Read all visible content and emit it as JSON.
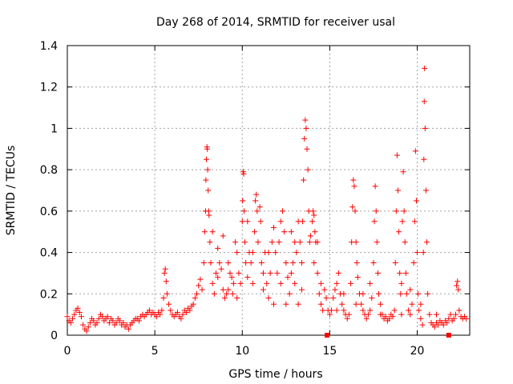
{
  "chart_data": {
    "type": "scatter",
    "title": "Day 268 of 2014, SRMTID for receiver usal",
    "xlabel": "GPS time / hours",
    "ylabel": "SRMTID / TECUs",
    "xlim": [
      0,
      23
    ],
    "ylim": [
      0,
      1.4
    ],
    "xticks": [
      0,
      5,
      10,
      15,
      20
    ],
    "xtick_labels": [
      "0",
      "5",
      "10",
      "15",
      "20"
    ],
    "yticks": [
      0,
      0.2,
      0.4,
      0.6,
      0.8,
      1,
      1.2,
      1.4
    ],
    "ytick_labels": [
      "0",
      "0.2",
      "0.4",
      "0.6",
      "0.8",
      "1",
      "1.2",
      "1.4"
    ],
    "grid": true,
    "marker": "+",
    "series": [
      {
        "name": "SRMTID",
        "color": "#ff0000",
        "points": [
          [
            0.0,
            0.09
          ],
          [
            0.1,
            0.07
          ],
          [
            0.2,
            0.06
          ],
          [
            0.3,
            0.08
          ],
          [
            0.4,
            0.1
          ],
          [
            0.5,
            0.12
          ],
          [
            0.6,
            0.13
          ],
          [
            0.7,
            0.11
          ],
          [
            0.8,
            0.09
          ],
          [
            0.9,
            0.05
          ],
          [
            1.0,
            0.03
          ],
          [
            1.1,
            0.02
          ],
          [
            1.2,
            0.04
          ],
          [
            1.3,
            0.06
          ],
          [
            1.4,
            0.08
          ],
          [
            1.5,
            0.07
          ],
          [
            1.6,
            0.05
          ],
          [
            1.7,
            0.06
          ],
          [
            1.8,
            0.08
          ],
          [
            1.9,
            0.1
          ],
          [
            2.0,
            0.09
          ],
          [
            2.1,
            0.07
          ],
          [
            2.2,
            0.08
          ],
          [
            2.3,
            0.09
          ],
          [
            2.4,
            0.06
          ],
          [
            2.5,
            0.08
          ],
          [
            2.6,
            0.07
          ],
          [
            2.7,
            0.05
          ],
          [
            2.8,
            0.06
          ],
          [
            2.9,
            0.08
          ],
          [
            3.0,
            0.07
          ],
          [
            3.1,
            0.05
          ],
          [
            3.2,
            0.06
          ],
          [
            3.3,
            0.04
          ],
          [
            3.4,
            0.05
          ],
          [
            3.5,
            0.03
          ],
          [
            3.6,
            0.05
          ],
          [
            3.7,
            0.06
          ],
          [
            3.8,
            0.07
          ],
          [
            3.9,
            0.08
          ],
          [
            4.0,
            0.08
          ],
          [
            4.1,
            0.07
          ],
          [
            4.2,
            0.09
          ],
          [
            4.3,
            0.1
          ],
          [
            4.4,
            0.09
          ],
          [
            4.5,
            0.1
          ],
          [
            4.6,
            0.11
          ],
          [
            4.7,
            0.12
          ],
          [
            4.8,
            0.1
          ],
          [
            4.9,
            0.11
          ],
          [
            5.0,
            0.1
          ],
          [
            5.1,
            0.09
          ],
          [
            5.2,
            0.11
          ],
          [
            5.3,
            0.1
          ],
          [
            5.4,
            0.12
          ],
          [
            5.5,
            0.18
          ],
          [
            5.55,
            0.3
          ],
          [
            5.6,
            0.32
          ],
          [
            5.65,
            0.26
          ],
          [
            5.7,
            0.2
          ],
          [
            5.8,
            0.15
          ],
          [
            5.9,
            0.12
          ],
          [
            6.0,
            0.1
          ],
          [
            6.1,
            0.09
          ],
          [
            6.2,
            0.1
          ],
          [
            6.3,
            0.11
          ],
          [
            6.4,
            0.09
          ],
          [
            6.5,
            0.08
          ],
          [
            6.6,
            0.1
          ],
          [
            6.7,
            0.12
          ],
          [
            6.8,
            0.11
          ],
          [
            6.9,
            0.13
          ],
          [
            7.0,
            0.12
          ],
          [
            7.1,
            0.14
          ],
          [
            7.2,
            0.15
          ],
          [
            7.3,
            0.18
          ],
          [
            7.4,
            0.2
          ],
          [
            7.5,
            0.24
          ],
          [
            7.6,
            0.27
          ],
          [
            7.7,
            0.22
          ],
          [
            7.8,
            0.35
          ],
          [
            7.85,
            0.5
          ],
          [
            7.9,
            0.6
          ],
          [
            7.92,
            0.75
          ],
          [
            7.95,
            0.85
          ],
          [
            7.98,
            0.91
          ],
          [
            8.0,
            0.9
          ],
          [
            8.02,
            0.8
          ],
          [
            8.05,
            0.7
          ],
          [
            8.08,
            0.6
          ],
          [
            8.1,
            0.58
          ],
          [
            8.15,
            0.45
          ],
          [
            8.2,
            0.35
          ],
          [
            8.3,
            0.25
          ],
          [
            8.4,
            0.2
          ],
          [
            8.5,
            0.3
          ],
          [
            8.6,
            0.28
          ],
          [
            8.7,
            0.35
          ],
          [
            8.8,
            0.32
          ],
          [
            8.9,
            0.22
          ],
          [
            9.0,
            0.18
          ],
          [
            9.1,
            0.2
          ],
          [
            9.2,
            0.22
          ],
          [
            9.3,
            0.3
          ],
          [
            9.4,
            0.28
          ],
          [
            9.5,
            0.25
          ],
          [
            9.6,
            0.45
          ],
          [
            9.7,
            0.4
          ],
          [
            9.8,
            0.3
          ],
          [
            9.9,
            0.25
          ],
          [
            10.0,
            0.55
          ],
          [
            10.02,
            0.65
          ],
          [
            10.05,
            0.79
          ],
          [
            10.08,
            0.78
          ],
          [
            10.1,
            0.6
          ],
          [
            10.15,
            0.45
          ],
          [
            10.2,
            0.35
          ],
          [
            10.3,
            0.28
          ],
          [
            10.4,
            0.4
          ],
          [
            10.5,
            0.35
          ],
          [
            10.6,
            0.25
          ],
          [
            10.7,
            0.5
          ],
          [
            10.75,
            0.65
          ],
          [
            10.8,
            0.68
          ],
          [
            10.85,
            0.6
          ],
          [
            10.9,
            0.45
          ],
          [
            11.0,
            0.62
          ],
          [
            11.05,
            0.55
          ],
          [
            11.1,
            0.35
          ],
          [
            11.2,
            0.3
          ],
          [
            11.3,
            0.4
          ],
          [
            11.4,
            0.25
          ],
          [
            11.5,
            0.18
          ],
          [
            11.6,
            0.3
          ],
          [
            11.7,
            0.45
          ],
          [
            11.8,
            0.52
          ],
          [
            11.9,
            0.4
          ],
          [
            12.0,
            0.3
          ],
          [
            12.1,
            0.45
          ],
          [
            12.2,
            0.55
          ],
          [
            12.3,
            0.6
          ],
          [
            12.4,
            0.5
          ],
          [
            12.5,
            0.35
          ],
          [
            12.6,
            0.28
          ],
          [
            12.7,
            0.2
          ],
          [
            12.8,
            0.3
          ],
          [
            12.9,
            0.35
          ],
          [
            13.0,
            0.25
          ],
          [
            13.1,
            0.4
          ],
          [
            13.2,
            0.55
          ],
          [
            13.3,
            0.45
          ],
          [
            13.4,
            0.35
          ],
          [
            13.45,
            0.55
          ],
          [
            13.5,
            0.75
          ],
          [
            13.55,
            0.95
          ],
          [
            13.6,
            1.04
          ],
          [
            13.65,
            1.0
          ],
          [
            13.7,
            0.9
          ],
          [
            13.75,
            0.8
          ],
          [
            13.8,
            0.6
          ],
          [
            13.85,
            0.45
          ],
          [
            13.9,
            0.48
          ],
          [
            14.0,
            0.55
          ],
          [
            14.05,
            0.6
          ],
          [
            14.1,
            0.58
          ],
          [
            14.15,
            0.5
          ],
          [
            14.2,
            0.45
          ],
          [
            14.3,
            0.3
          ],
          [
            14.4,
            0.2
          ],
          [
            14.5,
            0.15
          ],
          [
            14.6,
            0.12
          ],
          [
            14.7,
            0.22
          ],
          [
            14.8,
            0.18
          ],
          [
            14.9,
            0.12
          ],
          [
            15.0,
            0.1
          ],
          [
            15.1,
            0.12
          ],
          [
            15.2,
            0.18
          ],
          [
            15.3,
            0.22
          ],
          [
            15.4,
            0.25
          ],
          [
            15.5,
            0.3
          ],
          [
            15.6,
            0.2
          ],
          [
            15.7,
            0.15
          ],
          [
            15.8,
            0.12
          ],
          [
            15.9,
            0.1
          ],
          [
            16.0,
            0.08
          ],
          [
            16.1,
            0.1
          ],
          [
            16.2,
            0.25
          ],
          [
            16.25,
            0.45
          ],
          [
            16.3,
            0.62
          ],
          [
            16.35,
            0.75
          ],
          [
            16.4,
            0.72
          ],
          [
            16.45,
            0.6
          ],
          [
            16.5,
            0.45
          ],
          [
            16.55,
            0.35
          ],
          [
            16.6,
            0.28
          ],
          [
            16.7,
            0.2
          ],
          [
            16.8,
            0.15
          ],
          [
            16.9,
            0.12
          ],
          [
            17.0,
            0.1
          ],
          [
            17.1,
            0.08
          ],
          [
            17.2,
            0.1
          ],
          [
            17.3,
            0.12
          ],
          [
            17.4,
            0.18
          ],
          [
            17.5,
            0.35
          ],
          [
            17.55,
            0.55
          ],
          [
            17.6,
            0.72
          ],
          [
            17.65,
            0.6
          ],
          [
            17.7,
            0.45
          ],
          [
            17.75,
            0.3
          ],
          [
            17.8,
            0.2
          ],
          [
            17.9,
            0.15
          ],
          [
            18.0,
            0.1
          ],
          [
            18.1,
            0.08
          ],
          [
            18.2,
            0.09
          ],
          [
            18.3,
            0.07
          ],
          [
            18.4,
            0.08
          ],
          [
            18.5,
            0.1
          ],
          [
            18.6,
            0.09
          ],
          [
            18.7,
            0.12
          ],
          [
            18.75,
            0.35
          ],
          [
            18.8,
            0.6
          ],
          [
            18.85,
            0.87
          ],
          [
            18.9,
            0.7
          ],
          [
            18.95,
            0.5
          ],
          [
            19.0,
            0.3
          ],
          [
            19.05,
            0.2
          ],
          [
            19.1,
            0.25
          ],
          [
            19.15,
            0.55
          ],
          [
            19.2,
            0.79
          ],
          [
            19.25,
            0.6
          ],
          [
            19.3,
            0.45
          ],
          [
            19.35,
            0.3
          ],
          [
            19.4,
            0.2
          ],
          [
            19.5,
            0.12
          ],
          [
            19.6,
            0.1
          ],
          [
            19.7,
            0.15
          ],
          [
            19.8,
            0.35
          ],
          [
            19.85,
            0.55
          ],
          [
            19.9,
            0.89
          ],
          [
            19.95,
            0.65
          ],
          [
            20.0,
            0.4
          ],
          [
            20.05,
            0.2
          ],
          [
            20.1,
            0.12
          ],
          [
            20.2,
            0.08
          ],
          [
            20.3,
            0.05
          ],
          [
            20.35,
            0.4
          ],
          [
            20.38,
            0.85
          ],
          [
            20.4,
            1.13
          ],
          [
            20.42,
            1.29
          ],
          [
            20.45,
            1.0
          ],
          [
            20.5,
            0.7
          ],
          [
            20.55,
            0.45
          ],
          [
            20.6,
            0.2
          ],
          [
            20.7,
            0.1
          ],
          [
            20.8,
            0.06
          ],
          [
            20.9,
            0.05
          ],
          [
            21.0,
            0.04
          ],
          [
            21.1,
            0.06
          ],
          [
            21.2,
            0.05
          ],
          [
            21.3,
            0.07
          ],
          [
            21.4,
            0.06
          ],
          [
            21.5,
            0.05
          ],
          [
            21.6,
            0.07
          ],
          [
            21.7,
            0.06
          ],
          [
            21.8,
            0.08
          ],
          [
            21.9,
            0.1
          ],
          [
            22.0,
            0.07
          ],
          [
            22.1,
            0.08
          ],
          [
            22.2,
            0.1
          ],
          [
            22.25,
            0.24
          ],
          [
            22.3,
            0.26
          ],
          [
            22.35,
            0.22
          ],
          [
            22.4,
            0.12
          ],
          [
            22.5,
            0.09
          ],
          [
            22.6,
            0.08
          ],
          [
            22.7,
            0.09
          ],
          [
            22.8,
            0.08
          ],
          [
            8.3,
            0.5
          ],
          [
            8.6,
            0.42
          ],
          [
            8.9,
            0.48
          ],
          [
            9.2,
            0.35
          ],
          [
            9.45,
            0.2
          ],
          [
            9.7,
            0.18
          ],
          [
            10.3,
            0.55
          ],
          [
            10.6,
            0.4
          ],
          [
            11.2,
            0.22
          ],
          [
            11.5,
            0.4
          ],
          [
            11.8,
            0.15
          ],
          [
            12.2,
            0.25
          ],
          [
            12.5,
            0.15
          ],
          [
            12.8,
            0.5
          ],
          [
            13.0,
            0.45
          ],
          [
            13.2,
            0.15
          ],
          [
            13.4,
            0.22
          ],
          [
            14.1,
            0.35
          ],
          [
            14.3,
            0.45
          ],
          [
            14.5,
            0.25
          ],
          [
            15.4,
            0.12
          ],
          [
            15.8,
            0.2
          ],
          [
            16.5,
            0.15
          ],
          [
            16.9,
            0.2
          ],
          [
            17.3,
            0.25
          ],
          [
            17.9,
            0.1
          ],
          [
            19.1,
            0.1
          ],
          [
            19.6,
            0.22
          ],
          [
            20.2,
            0.15
          ],
          [
            21.1,
            0.1
          ]
        ]
      }
    ],
    "outliers_at_zero": [
      [
        14.85,
        0.0
      ],
      [
        21.8,
        0.0
      ]
    ]
  }
}
